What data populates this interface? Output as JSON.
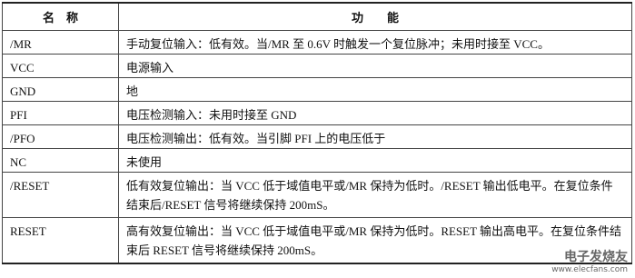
{
  "table": {
    "header": [
      "名　称",
      "功　　能"
    ],
    "rows": [
      [
        "/MR",
        "手动复位输入：低有效。当/MR 至 0.6V 时触发一个复位脉冲；未用时接至 VCC。"
      ],
      [
        "VCC",
        "电源输入"
      ],
      [
        "GND",
        "地"
      ],
      [
        "PFI",
        "电压检测输入：未用时接至 GND"
      ],
      [
        "/PFO",
        "电压检测输出：低有效。当引脚 PFI 上的电压低于"
      ],
      [
        "NC",
        "未使用"
      ],
      [
        "/RESET",
        "低有效复位输出：当 VCC 低于域值电平或/MR 保持为低时。/RESET 输出低电平。在复位条件结束后/RESET 信号将继续保持 200mS。"
      ],
      [
        "RESET",
        "高有效复位输出：当 VCC 低于域值电平或/MR 保持为低时。RESET 输出高电平。在复位条件结束后 RESET 信号将继续保持 200mS。"
      ]
    ]
  },
  "watermark": {
    "name": "电子发烧友",
    "url": "www.elecfans.com"
  }
}
